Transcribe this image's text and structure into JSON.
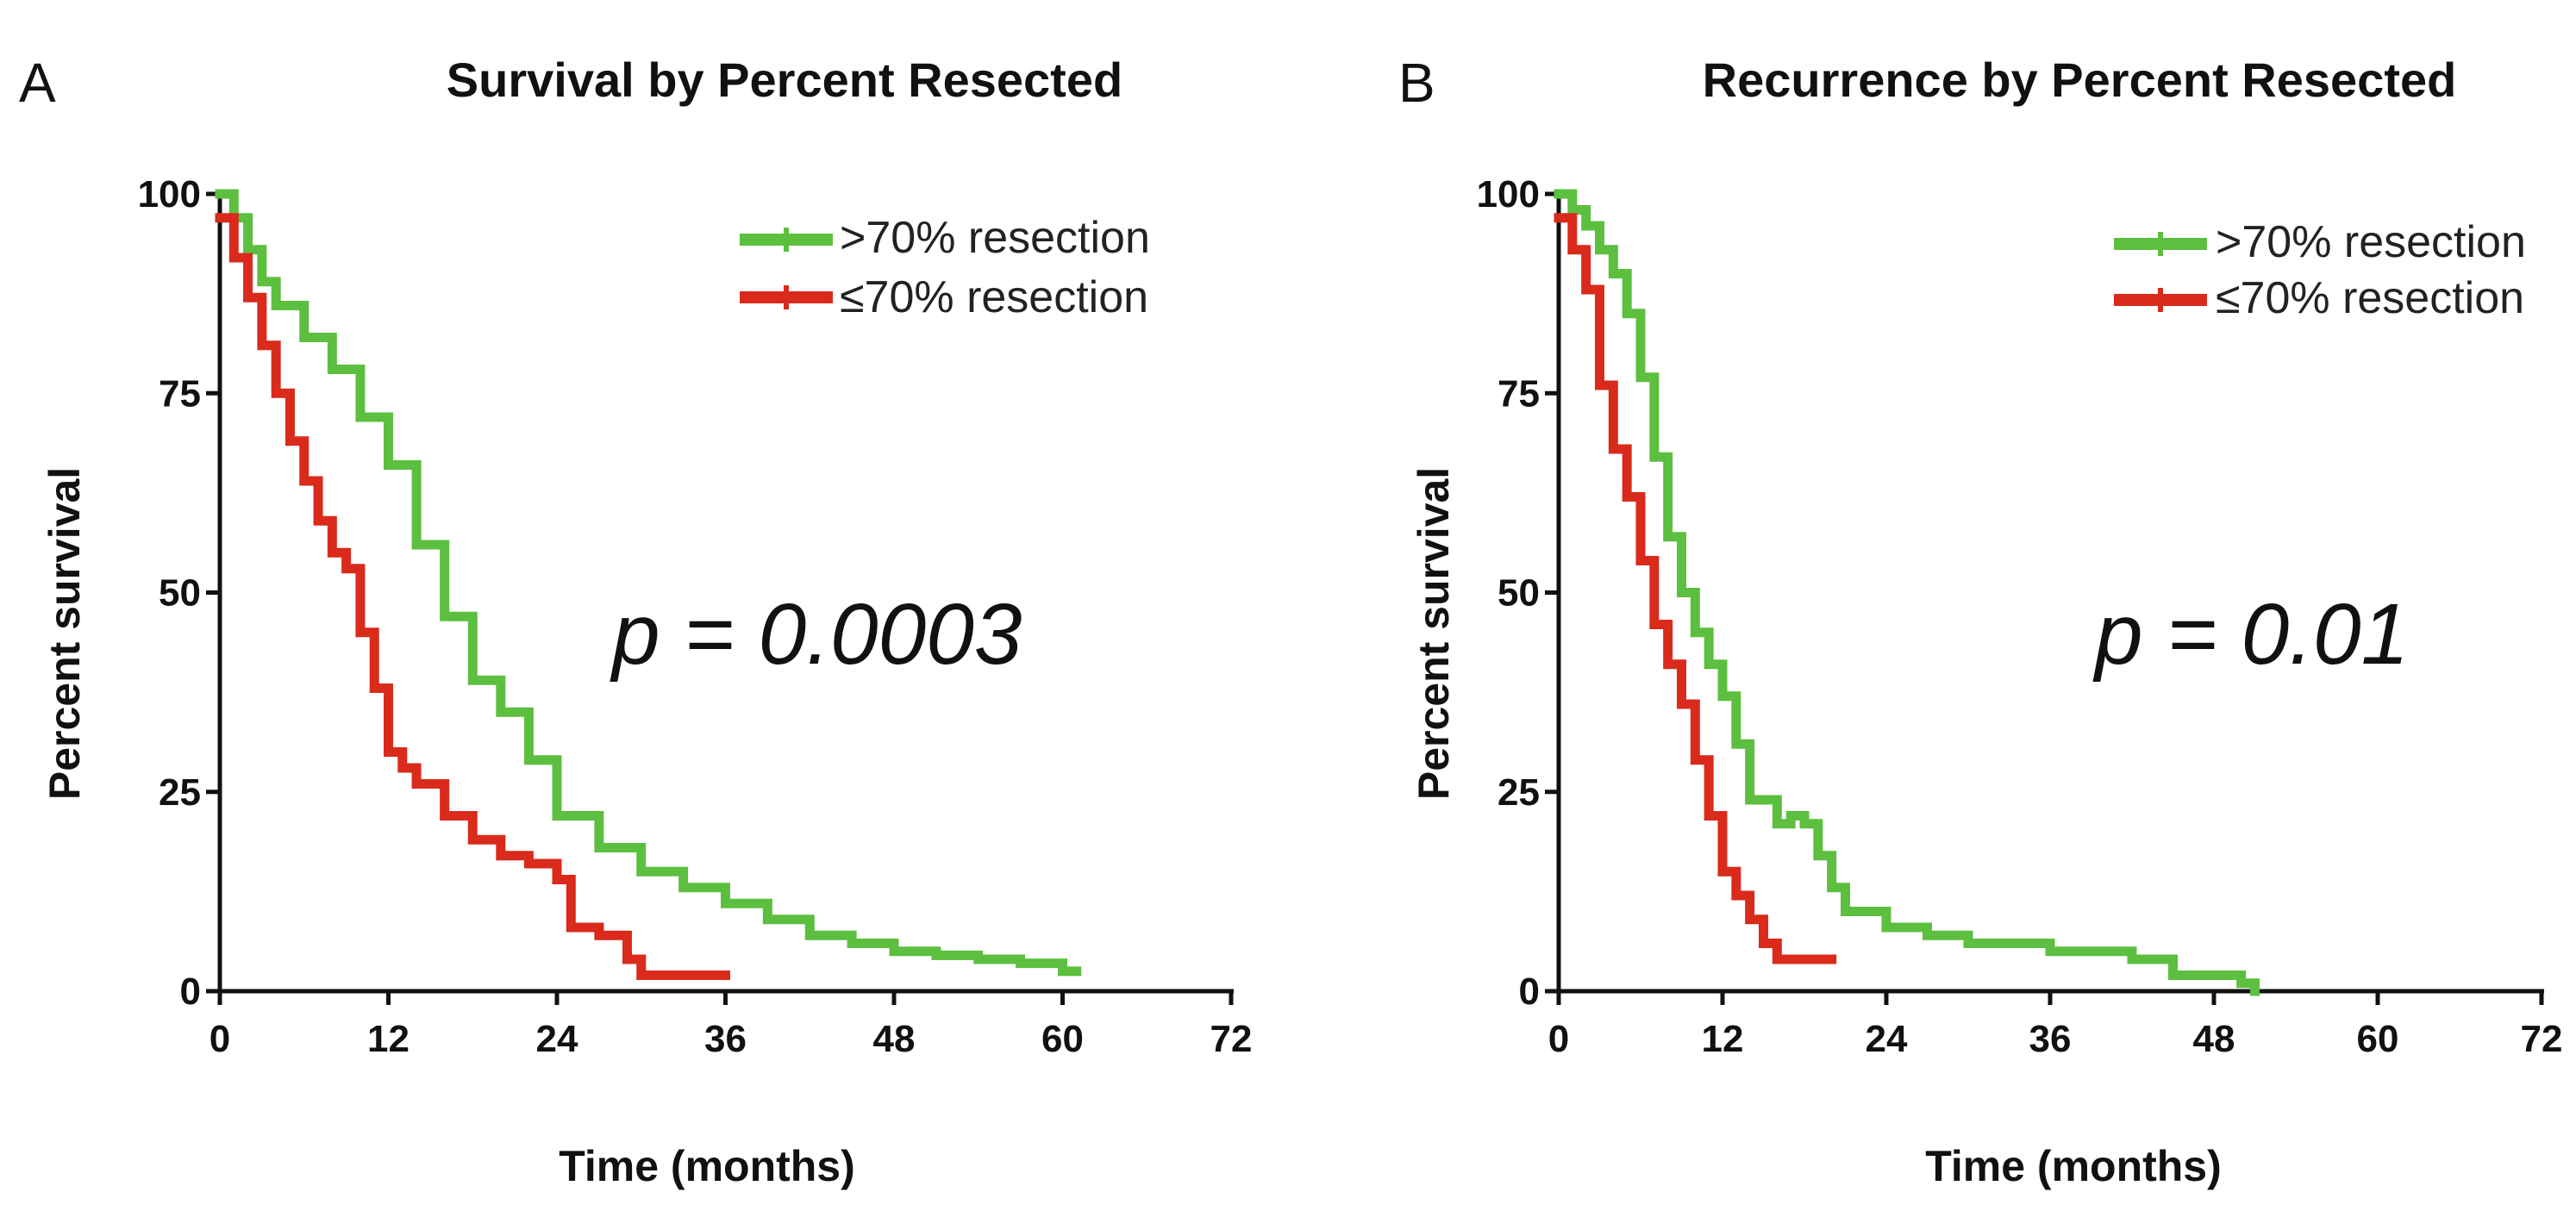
{
  "chart_data": [
    {
      "type": "line",
      "panel": "A",
      "title": "Survival by Percent Resected",
      "xlabel": "Time (months)",
      "ylabel": "Percent survival",
      "xlim": [
        0,
        72
      ],
      "ylim": [
        0,
        100
      ],
      "xticks": [
        0,
        12,
        24,
        36,
        48,
        60,
        72
      ],
      "yticks": [
        0,
        25,
        50,
        75,
        100
      ],
      "annotation": "p = 0.0003",
      "legend_position": "top-right",
      "series": [
        {
          "name": ">70% resection",
          "color": "#5cbf3f",
          "x": [
            0,
            1,
            2,
            3,
            4,
            6,
            8,
            10,
            12,
            14,
            16,
            18,
            20,
            22,
            24,
            27,
            30,
            33,
            36,
            39,
            42,
            45,
            48,
            51,
            54,
            57,
            60,
            61
          ],
          "y": [
            100,
            97,
            93,
            89,
            86,
            82,
            78,
            72,
            66,
            56,
            47,
            39,
            35,
            29,
            22,
            18,
            15,
            13,
            11,
            9,
            7,
            6,
            5,
            4.5,
            4,
            3.5,
            2.5,
            2.5
          ]
        },
        {
          "name": "≤70% resection",
          "color": "#d92a1c",
          "x": [
            0,
            1,
            2,
            3,
            4,
            5,
            6,
            7,
            8,
            9,
            10,
            11,
            12,
            13,
            14,
            16,
            18,
            20,
            22,
            24,
            25,
            27,
            29,
            30,
            33,
            36
          ],
          "y": [
            97,
            92,
            87,
            81,
            75,
            69,
            64,
            59,
            55,
            53,
            45,
            38,
            30,
            28,
            26,
            22,
            19,
            17,
            16,
            14,
            8,
            7,
            4,
            2,
            2,
            2
          ]
        }
      ]
    },
    {
      "type": "line",
      "panel": "B",
      "title": "Recurrence by Percent  Resected",
      "xlabel": "Time (months)",
      "ylabel": "Percent survival",
      "xlim": [
        0,
        72
      ],
      "ylim": [
        0,
        100
      ],
      "xticks": [
        0,
        12,
        24,
        36,
        48,
        60,
        72
      ],
      "yticks": [
        0,
        25,
        50,
        75,
        100
      ],
      "annotation": "p = 0.01",
      "legend_position": "top-right",
      "series": [
        {
          "name": ">70% resection",
          "color": "#5cbf3f",
          "x": [
            0,
            1,
            2,
            3,
            4,
            5,
            6,
            7,
            8,
            9,
            10,
            11,
            12,
            13,
            14,
            16,
            17,
            18,
            19,
            20,
            21,
            24,
            27,
            30,
            33,
            36,
            39,
            42,
            45,
            48,
            50,
            51
          ],
          "y": [
            100,
            98,
            96,
            93,
            90,
            85,
            77,
            67,
            57,
            50,
            45,
            41,
            37,
            31,
            24,
            21,
            22,
            21,
            17,
            13,
            10,
            8,
            7,
            6,
            6,
            5,
            5,
            4,
            2,
            2,
            1,
            0
          ]
        },
        {
          "name": "≤70% resection",
          "color": "#d92a1c",
          "x": [
            0,
            1,
            2,
            3,
            4,
            5,
            6,
            7,
            8,
            9,
            10,
            11,
            12,
            13,
            14,
            15,
            16,
            17,
            18,
            19,
            20
          ],
          "y": [
            97,
            93,
            88,
            76,
            68,
            62,
            54,
            46,
            41,
            36,
            29,
            22,
            15,
            12,
            9,
            6,
            4,
            4,
            4,
            4,
            4
          ]
        }
      ]
    }
  ]
}
